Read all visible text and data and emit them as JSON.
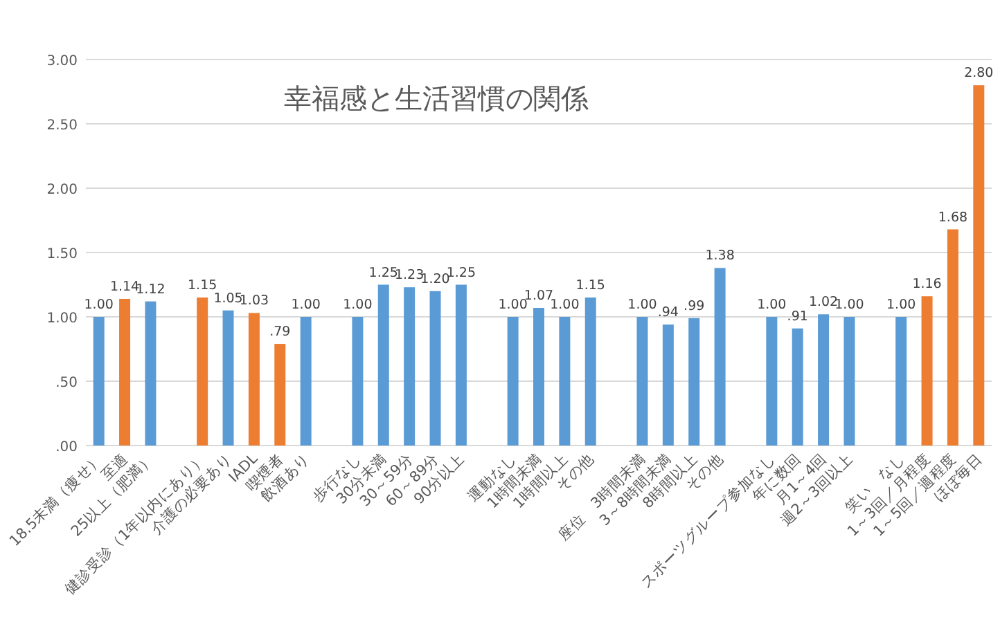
{
  "chart_data": {
    "type": "bar",
    "title": "幸福感と生活習慣の関係",
    "categories": [
      "18.5未満（痩せ）",
      "至適",
      "25以上（肥満）",
      null,
      "健診受診（1年以内にあり）",
      "介護の必要あり",
      "IADL",
      "喫煙者",
      "飲酒あり",
      null,
      "歩行なし",
      "30分未満",
      "30～59分",
      "60～89分",
      "90分以上",
      null,
      "運動なし",
      "1時間未満",
      "1時間以上",
      "その他",
      null,
      "座位　3時間未満",
      "3～8時間未満",
      "8時間以上",
      "その他",
      null,
      "スポーツグループ参加なし",
      "年に数回",
      "月1～4回",
      "週2～3回以上",
      null,
      "笑い　なし",
      "1～3回／月程度",
      "1～5回／週程度",
      "ほぼ毎日"
    ],
    "values": [
      1.0,
      1.14,
      1.12,
      null,
      1.15,
      1.05,
      1.03,
      0.79,
      1.0,
      null,
      1.0,
      1.25,
      1.23,
      1.2,
      1.25,
      null,
      1.0,
      1.07,
      1.0,
      1.15,
      null,
      1.0,
      0.94,
      0.99,
      1.38,
      null,
      1.0,
      0.91,
      1.02,
      1.0,
      null,
      1.0,
      1.16,
      1.68,
      2.8
    ],
    "value_labels": [
      "1.00",
      "1.14",
      "1.12",
      null,
      "1.15",
      "1.05",
      "1.03",
      ".79",
      "1.00",
      null,
      "1.00",
      "1.25",
      "1.23",
      "1.20",
      "1.25",
      null,
      "1.00",
      "1.07",
      "1.00",
      "1.15",
      null,
      "1.00",
      ".94",
      ".99",
      "1.38",
      null,
      "1.00",
      ".91",
      "1.02",
      "1.00",
      null,
      "1.00",
      "1.16",
      "1.68",
      "2.80"
    ],
    "colors": [
      "#5b9bd5",
      "#ed7d31",
      "#5b9bd5",
      null,
      "#ed7d31",
      "#5b9bd5",
      "#ed7d31",
      "#ed7d31",
      "#5b9bd5",
      null,
      "#5b9bd5",
      "#5b9bd5",
      "#5b9bd5",
      "#5b9bd5",
      "#5b9bd5",
      null,
      "#5b9bd5",
      "#5b9bd5",
      "#5b9bd5",
      "#5b9bd5",
      null,
      "#5b9bd5",
      "#5b9bd5",
      "#5b9bd5",
      "#5b9bd5",
      null,
      "#5b9bd5",
      "#5b9bd5",
      "#5b9bd5",
      "#5b9bd5",
      null,
      "#5b9bd5",
      "#ed7d31",
      "#ed7d31",
      "#ed7d31"
    ],
    "ylim": [
      0,
      3
    ],
    "yticks": [
      {
        "value": 0,
        "label": ".00"
      },
      {
        "value": 0.5,
        "label": ".50"
      },
      "1.00",
      "1.50",
      "2.00",
      "2.50",
      "3.00"
    ],
    "grid": "y"
  }
}
